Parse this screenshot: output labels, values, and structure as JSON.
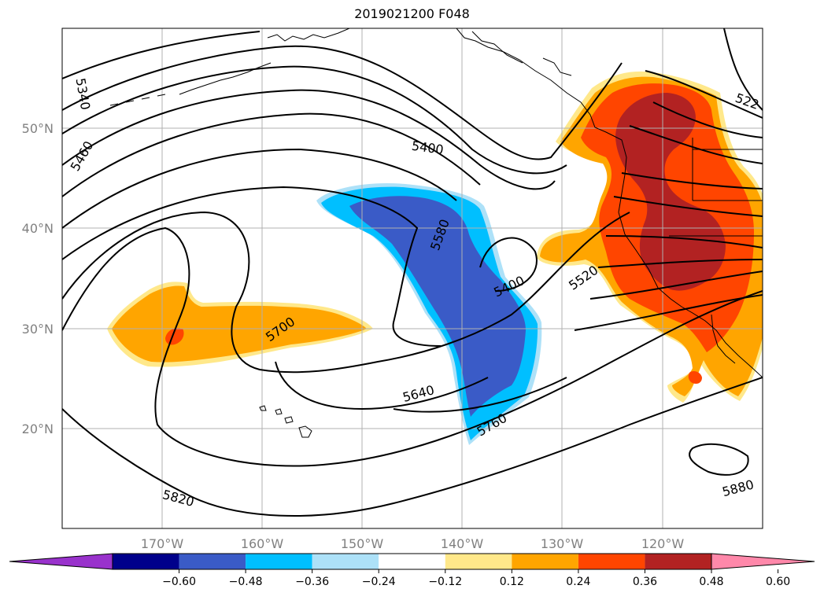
{
  "title": "2019021200 F048",
  "map": {
    "lat_labels": [
      "50°N",
      "40°N",
      "30°N",
      "20°N"
    ],
    "lon_labels": [
      "170°W",
      "160°W",
      "150°W",
      "140°W",
      "130°W",
      "120°W"
    ],
    "contour_labels": [
      "5340",
      "5460",
      "5400",
      "5580",
      "5400",
      "5520",
      "5700",
      "5640",
      "5760",
      "5820",
      "5880",
      "522"
    ]
  },
  "colorbar": {
    "tick_labels": [
      "−0.60",
      "−0.48",
      "−0.36",
      "−0.24",
      "−0.12",
      "0.12",
      "0.24",
      "0.36",
      "0.48",
      "0.60"
    ],
    "colors": [
      "#9932CC",
      "#00008B",
      "#3A5BC7",
      "#00BFFF",
      "#ADE1F8",
      "#FFFFFF",
      "#FFE88A",
      "#FFA500",
      "#FF4500",
      "#B22222",
      "#FF88AA"
    ]
  }
}
